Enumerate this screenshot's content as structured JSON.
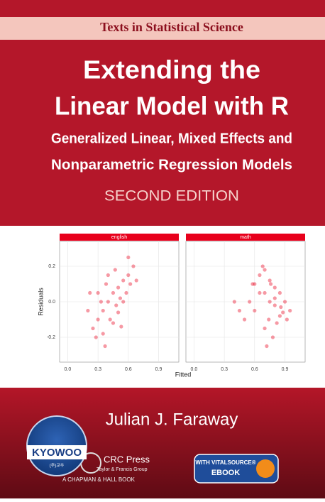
{
  "header": {
    "series": "Texts in Statistical Science"
  },
  "title": {
    "line1": "Extending the",
    "line2": "Linear Model with R"
  },
  "subtitle": {
    "line1": "Generalized Linear, Mixed Effects and",
    "line2": "Nonparametric Regression Models"
  },
  "edition": "SECOND EDITION",
  "chart_data": {
    "type": "scatter",
    "x_label": "Fitted",
    "y_label": "Residuals",
    "color": "#e8001c",
    "xlim": [
      -0.08,
      1.1
    ],
    "ylim": [
      -0.34,
      0.34
    ],
    "xticks": [
      {
        "value": 0,
        "label": "0.0"
      },
      0.3,
      0.6,
      0.9
    ],
    "yticks": [
      -0.2,
      {
        "value": 0,
        "label": "0.0"
      },
      0.2
    ],
    "grid": true,
    "panels": [
      {
        "name": "english",
        "x": [
          0.25,
          0.3,
          0.35,
          0.4,
          0.45,
          0.5,
          0.55,
          0.6,
          0.65,
          0.2,
          0.3,
          0.38,
          0.42,
          0.48,
          0.52,
          0.58,
          0.62,
          0.28,
          0.35,
          0.45,
          0.5,
          0.55,
          0.4,
          0.33,
          0.6,
          0.68,
          0.22,
          0.47,
          0.53,
          0.37
        ],
        "y": [
          -0.15,
          -0.1,
          -0.05,
          0.0,
          0.05,
          0.08,
          0.12,
          0.15,
          0.2,
          -0.05,
          0.05,
          0.1,
          -0.1,
          -0.02,
          0.02,
          0.05,
          0.1,
          -0.2,
          -0.18,
          -0.12,
          -0.06,
          0.0,
          0.15,
          0.0,
          0.25,
          0.12,
          0.05,
          0.18,
          -0.14,
          -0.25
        ]
      },
      {
        "name": "math",
        "x": [
          0.6,
          0.65,
          0.7,
          0.75,
          0.8,
          0.85,
          0.9,
          0.95,
          0.55,
          0.6,
          0.7,
          0.75,
          0.8,
          0.85,
          0.5,
          0.45,
          0.7,
          0.78,
          0.82,
          0.88,
          0.65,
          0.72,
          0.76,
          0.4,
          0.92,
          0.68,
          0.74,
          0.58,
          0.8,
          0.86
        ],
        "y": [
          0.1,
          0.15,
          0.18,
          0.12,
          0.08,
          0.05,
          0.0,
          -0.05,
          0.0,
          -0.05,
          0.05,
          0.0,
          -0.02,
          -0.08,
          -0.1,
          -0.05,
          -0.15,
          -0.2,
          -0.12,
          -0.06,
          0.05,
          -0.25,
          0.1,
          0.0,
          -0.1,
          0.2,
          -0.1,
          0.1,
          0.02,
          -0.03
        ]
      }
    ]
  },
  "author": "Julian J. Faraway",
  "publisher": {
    "name": "CRC Press",
    "group": "Taylor & Francis Group",
    "imprint": "A CHAPMAN & HALL BOOK"
  },
  "badge": {
    "line1": "WITH VITALSOURCE®",
    "line2": "EBOOK"
  },
  "sticker": {
    "name": "KYOWOO",
    "korean": "(주)교우"
  }
}
